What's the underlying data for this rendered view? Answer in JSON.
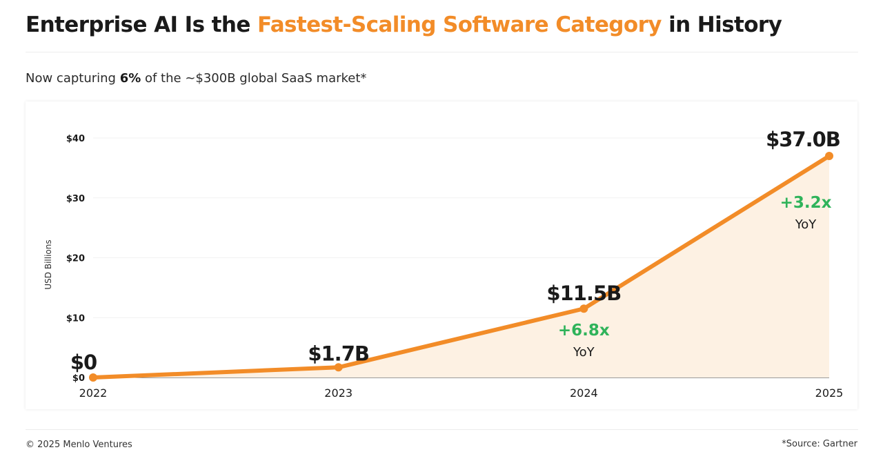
{
  "header": {
    "title_part1": "Enterprise AI Is the ",
    "title_accent": "Fastest-Scaling Software Category",
    "title_part2": " in History",
    "subtitle_pre": "Now capturing ",
    "subtitle_bold": "6%",
    "subtitle_post": " of the ~$300B global SaaS market*"
  },
  "footer": {
    "copyright": "© 2025 Menlo Ventures",
    "source": "*Source: Gartner"
  },
  "colors": {
    "accent": "#f28c28",
    "line": "#f28c28",
    "area_fill": "#fdf1e3",
    "growth": "#2fb35a",
    "text_dark": "#1a1a1a",
    "grid": "#f1f1f1"
  },
  "chart_data": {
    "type": "area",
    "title": "",
    "xlabel": "",
    "ylabel": "USD Billions",
    "categories": [
      "2022",
      "2023",
      "2024",
      "2025"
    ],
    "values": [
      0,
      1.7,
      11.5,
      37.0
    ],
    "ylim": [
      0,
      40
    ],
    "yticks": [
      0,
      10,
      20,
      30,
      40
    ],
    "ytick_labels": [
      "$0",
      "$10",
      "$20",
      "$30",
      "$40"
    ],
    "grid": true,
    "data_labels": [
      "$0",
      "$1.7B",
      "$11.5B",
      "$37.0B"
    ],
    "growth_annotations": [
      {
        "category": "2024",
        "value": "+6.8x",
        "unit": "YoY"
      },
      {
        "category": "2025",
        "value": "+3.2x",
        "unit": "YoY"
      }
    ]
  }
}
